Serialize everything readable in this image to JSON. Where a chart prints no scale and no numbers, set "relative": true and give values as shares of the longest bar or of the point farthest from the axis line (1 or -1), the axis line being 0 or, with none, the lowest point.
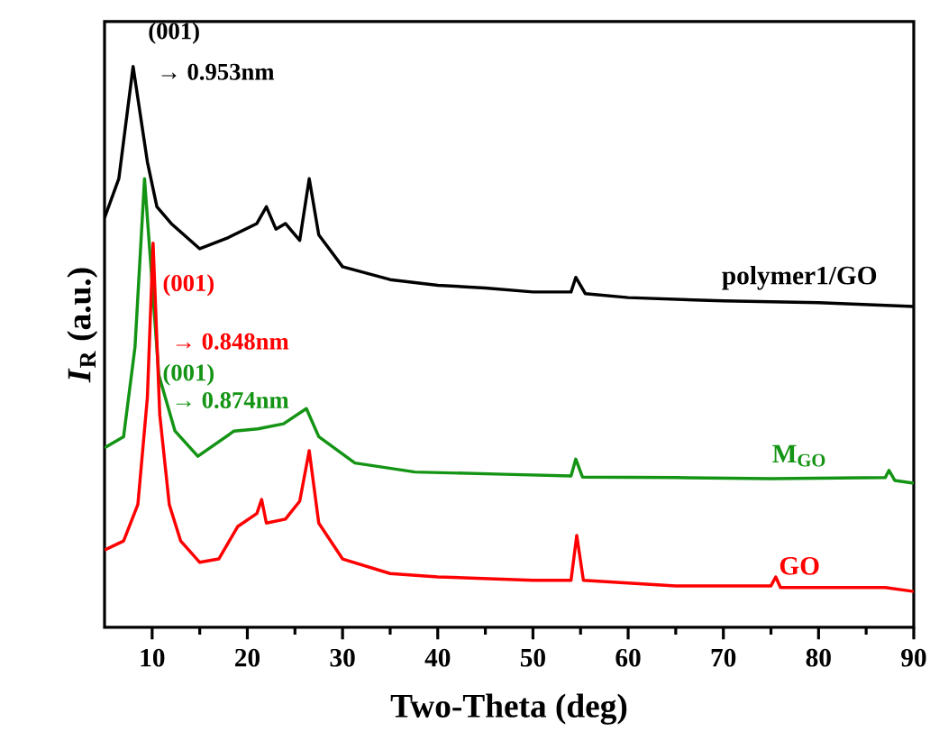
{
  "chart_data": {
    "type": "line",
    "relative": true,
    "xlabel": "Two-Theta (deg)",
    "ylabel": "*I*$_{R}$ (a.u.)",
    "xlim": [
      5,
      90
    ],
    "xticks": [
      10,
      20,
      30,
      40,
      50,
      60,
      70,
      80,
      90
    ],
    "grid": false,
    "legend": false,
    "marker": "none",
    "line_style": "solid",
    "series": [
      {
        "name": "polymer1/GO",
        "color": "#000000",
        "x": [
          5,
          6.5,
          8,
          9.5,
          10.5,
          12,
          15,
          18,
          21,
          22,
          23,
          24,
          25.5,
          26.5,
          27.5,
          30,
          35,
          40,
          45,
          50,
          54,
          54.5,
          55.5,
          60,
          70,
          80,
          90
        ],
        "values": [
          0.73,
          0.8,
          1.0,
          0.83,
          0.75,
          0.72,
          0.675,
          0.695,
          0.72,
          0.75,
          0.71,
          0.72,
          0.69,
          0.8,
          0.7,
          0.643,
          0.62,
          0.61,
          0.605,
          0.598,
          0.598,
          0.624,
          0.595,
          0.588,
          0.582,
          0.579,
          0.572
        ]
      },
      {
        "name": "M$_{GO}$",
        "color": "#149414",
        "x": [
          5,
          7,
          8.2,
          9.2,
          10.7,
          12.4,
          14.8,
          18.6,
          21.1,
          23.8,
          26.2,
          27.5,
          31.3,
          37.6,
          47,
          54,
          54.5,
          55.2,
          65,
          75,
          87,
          87.4,
          88,
          90
        ],
        "values": [
          0.32,
          0.34,
          0.5,
          0.8,
          0.45,
          0.35,
          0.305,
          0.35,
          0.354,
          0.363,
          0.39,
          0.34,
          0.293,
          0.277,
          0.273,
          0.27,
          0.3,
          0.268,
          0.267,
          0.265,
          0.267,
          0.28,
          0.262,
          0.257
        ]
      },
      {
        "name": "GO",
        "color": "#ff0000",
        "x": [
          5,
          7,
          8.5,
          9.5,
          10.1,
          10.8,
          11.8,
          13,
          15,
          17,
          19,
          21,
          21.5,
          22,
          24,
          25.5,
          26.5,
          27.5,
          30,
          35,
          40,
          50,
          54,
          54.6,
          55.3,
          65,
          75,
          75.5,
          76,
          87,
          90
        ],
        "values": [
          0.138,
          0.154,
          0.219,
          0.41,
          0.685,
          0.379,
          0.219,
          0.154,
          0.116,
          0.122,
          0.18,
          0.203,
          0.228,
          0.186,
          0.193,
          0.225,
          0.315,
          0.186,
          0.122,
          0.096,
          0.09,
          0.084,
          0.084,
          0.164,
          0.084,
          0.074,
          0.074,
          0.09,
          0.071,
          0.071,
          0.064
        ]
      }
    ],
    "annotations": [
      "(001)",
      "→ 0.953nm",
      "(001)",
      "→ 0.874nm",
      "(001)",
      "→ 0.848nm"
    ]
  }
}
